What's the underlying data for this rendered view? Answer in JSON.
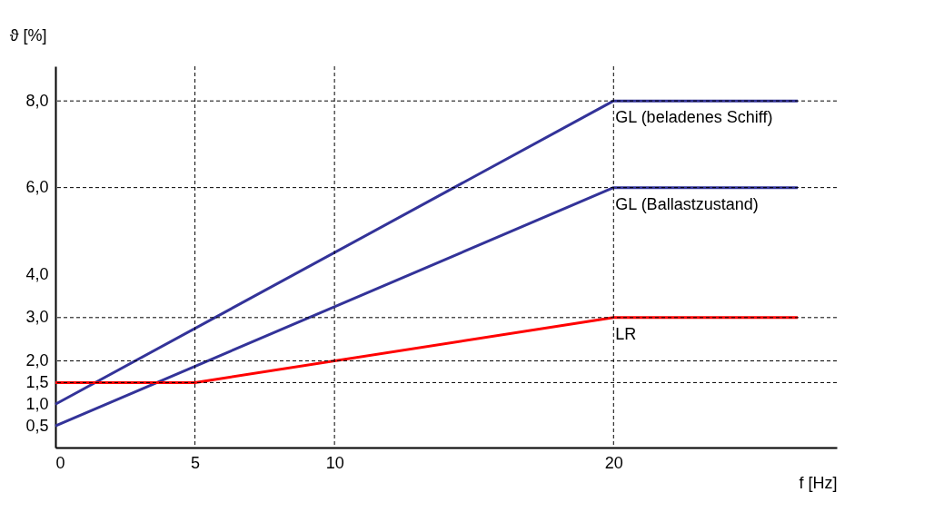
{
  "chart_data": {
    "type": "line",
    "xlabel": "f [Hz]",
    "ylabel": "ϑ [%]",
    "xlim": [
      0,
      28
    ],
    "ylim": [
      0,
      8.8
    ],
    "xticks": [
      0,
      5,
      10,
      20
    ],
    "yticks": [
      {
        "value": 0.5,
        "label": "0,5"
      },
      {
        "value": 1.0,
        "label": "1,0"
      },
      {
        "value": 1.5,
        "label": "1,5"
      },
      {
        "value": 2.0,
        "label": "2,0"
      },
      {
        "value": 3.0,
        "label": "3,0"
      },
      {
        "value": 4.0,
        "label": "4,0"
      },
      {
        "value": 6.0,
        "label": "6,0"
      },
      {
        "value": 8.0,
        "label": "8,0"
      }
    ],
    "grid": false,
    "legend": false,
    "marker": "none",
    "line_style": "solid",
    "series": [
      {
        "name": "GL (beladenes Schiff)",
        "color": "#333399",
        "x": [
          0,
          20,
          26.6
        ],
        "values": [
          1.0,
          8.0,
          8.0
        ]
      },
      {
        "name": "GL (Ballastzustand)",
        "color": "#333399",
        "x": [
          0,
          20,
          26.6
        ],
        "values": [
          0.5,
          6.0,
          6.0
        ]
      },
      {
        "name": "LR",
        "color": "#ff0000",
        "x": [
          0,
          5,
          20,
          26.6
        ],
        "values": [
          1.5,
          1.5,
          3.0,
          3.0
        ]
      }
    ],
    "ref_lines": [
      {
        "axis": "y",
        "value": 8.0,
        "color": "#000000",
        "line_style": "dashed"
      },
      {
        "axis": "y",
        "value": 6.0,
        "color": "#000000",
        "line_style": "dashed"
      },
      {
        "axis": "y",
        "value": 3.0,
        "color": "#000000",
        "line_style": "dashed"
      },
      {
        "axis": "y",
        "value": 2.0,
        "color": "#000000",
        "line_style": "dashed"
      },
      {
        "axis": "y",
        "value": 1.5,
        "color": "#000000",
        "line_style": "dashed"
      },
      {
        "axis": "x",
        "value": 5,
        "color": "#000000",
        "line_style": "dashed"
      },
      {
        "axis": "x",
        "value": 10,
        "color": "#000000",
        "line_style": "dashed"
      },
      {
        "axis": "x",
        "value": 20,
        "color": "#000000",
        "line_style": "dashed"
      }
    ]
  }
}
